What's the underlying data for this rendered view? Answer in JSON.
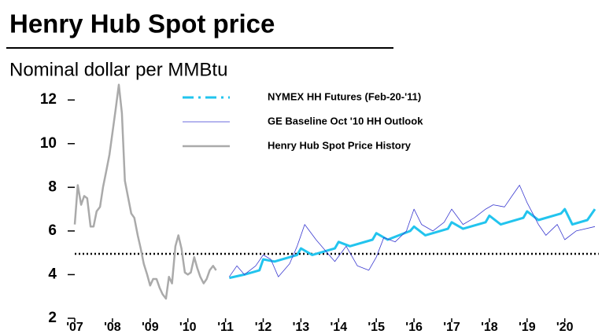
{
  "chart_data": {
    "type": "line",
    "title": "Henry Hub Spot price",
    "subtitle": "Nominal dollar per MMBtu",
    "xlim": [
      2007,
      2020.9
    ],
    "ylim": [
      2,
      12.8
    ],
    "xticks": [
      {
        "value": 2007,
        "label": "'07"
      },
      {
        "value": 2008,
        "label": "'08"
      },
      {
        "value": 2009,
        "label": "'09"
      },
      {
        "value": 2010,
        "label": "'10"
      },
      {
        "value": 2011,
        "label": "'11"
      },
      {
        "value": 2012,
        "label": "'12"
      },
      {
        "value": 2013,
        "label": "'13"
      },
      {
        "value": 2014,
        "label": "'14"
      },
      {
        "value": 2015,
        "label": "'15"
      },
      {
        "value": 2016,
        "label": "'16"
      },
      {
        "value": 2017,
        "label": "'17"
      },
      {
        "value": 2018,
        "label": "'18"
      },
      {
        "value": 2019,
        "label": "'19"
      },
      {
        "value": 2020,
        "label": "'20"
      }
    ],
    "yticks": [
      2,
      4,
      6,
      8,
      10,
      12
    ],
    "reference_line": {
      "value": 4.95,
      "color": "#000000",
      "style": "dotted"
    },
    "series": [
      {
        "name": "NYMEX HH Futures (Feb-20-'11)",
        "color": "#22c4ee",
        "style": "dashed",
        "x": [
          2011.1,
          2011.5,
          2011.9,
          2012.0,
          2012.3,
          2012.9,
          2013.0,
          2013.3,
          2013.9,
          2014.0,
          2014.3,
          2014.9,
          2015.0,
          2015.3,
          2015.9,
          2016.0,
          2016.3,
          2016.9,
          2017.0,
          2017.3,
          2017.9,
          2018.0,
          2018.3,
          2018.9,
          2019.0,
          2019.3,
          2019.9,
          2020.0,
          2020.2,
          2020.6,
          2020.8
        ],
        "values": [
          3.85,
          4.0,
          4.2,
          4.7,
          4.6,
          4.9,
          5.2,
          4.9,
          5.2,
          5.5,
          5.3,
          5.6,
          5.9,
          5.6,
          6.0,
          6.2,
          5.8,
          6.1,
          6.4,
          6.1,
          6.4,
          6.7,
          6.3,
          6.6,
          6.9,
          6.5,
          6.8,
          7.0,
          6.3,
          6.5,
          7.0
        ]
      },
      {
        "name": "GE Baseline Oct '10 HH Outlook",
        "color": "#3a3ad0",
        "style": "thin",
        "x": [
          2011.1,
          2011.3,
          2011.5,
          2011.8,
          2012.0,
          2012.2,
          2012.4,
          2012.7,
          2012.9,
          2013.1,
          2013.4,
          2013.7,
          2013.9,
          2014.2,
          2014.5,
          2014.8,
          2015.0,
          2015.2,
          2015.5,
          2015.8,
          2016.0,
          2016.2,
          2016.5,
          2016.8,
          2017.0,
          2017.3,
          2017.6,
          2017.9,
          2018.1,
          2018.4,
          2018.6,
          2018.8,
          2019.0,
          2019.3,
          2019.5,
          2019.8,
          2020.0,
          2020.3,
          2020.8
        ],
        "values": [
          3.9,
          4.4,
          4.0,
          4.4,
          4.9,
          4.7,
          3.9,
          4.5,
          5.3,
          6.3,
          5.6,
          5.0,
          4.6,
          5.3,
          4.4,
          4.2,
          4.8,
          5.7,
          5.5,
          6.0,
          7.0,
          6.3,
          6.0,
          6.4,
          7.0,
          6.3,
          6.6,
          7.0,
          7.2,
          7.1,
          7.6,
          8.1,
          7.3,
          6.3,
          5.8,
          6.3,
          5.6,
          6.0,
          6.2
        ]
      },
      {
        "name": "Henry Hub Spot Price History",
        "color": "#aaaaaa",
        "style": "thick",
        "x": [
          2007.0,
          2007.08,
          2007.17,
          2007.25,
          2007.33,
          2007.42,
          2007.5,
          2007.58,
          2007.67,
          2007.75,
          2007.83,
          2007.92,
          2008.0,
          2008.08,
          2008.17,
          2008.25,
          2008.33,
          2008.42,
          2008.5,
          2008.58,
          2008.67,
          2008.75,
          2008.83,
          2008.92,
          2009.0,
          2009.08,
          2009.17,
          2009.25,
          2009.33,
          2009.42,
          2009.5,
          2009.58,
          2009.67,
          2009.75,
          2009.83,
          2009.92,
          2010.0,
          2010.08,
          2010.17,
          2010.25,
          2010.33,
          2010.42,
          2010.5,
          2010.58,
          2010.67,
          2010.75
        ],
        "values": [
          6.3,
          8.1,
          7.2,
          7.6,
          7.5,
          6.2,
          6.2,
          6.9,
          7.1,
          8.0,
          8.7,
          9.5,
          10.5,
          11.5,
          12.7,
          11.4,
          8.3,
          7.5,
          6.8,
          6.6,
          5.8,
          5.2,
          4.5,
          4.0,
          3.5,
          3.8,
          3.8,
          3.4,
          3.1,
          2.9,
          3.9,
          3.6,
          5.3,
          5.8,
          5.2,
          4.1,
          4.0,
          4.1,
          4.8,
          4.3,
          3.9,
          3.6,
          3.8,
          4.2,
          4.4,
          4.2
        ]
      }
    ]
  }
}
